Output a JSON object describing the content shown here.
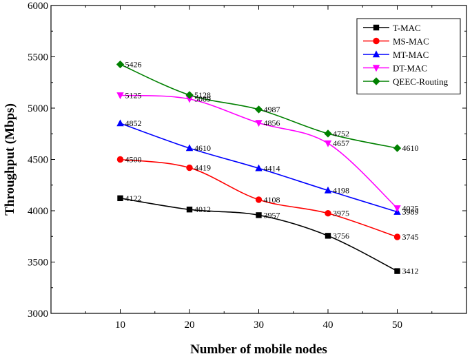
{
  "chart_data": {
    "type": "line",
    "title": "",
    "xlabel": "Number of mobile nodes",
    "ylabel": "Throughput (Mbps)",
    "x": [
      10,
      20,
      30,
      40,
      50
    ],
    "xlim": [
      0,
      60
    ],
    "ylim": [
      3000,
      6000
    ],
    "xticks": [
      10,
      20,
      30,
      40,
      50
    ],
    "yticks": [
      3000,
      3500,
      4000,
      4500,
      5000,
      5500,
      6000
    ],
    "grid": false,
    "legend_position": "top-right",
    "series": [
      {
        "name": "T-MAC",
        "color": "#000000",
        "marker": "square",
        "values": [
          4122,
          4012,
          3957,
          3756,
          3412
        ]
      },
      {
        "name": "MS-MAC",
        "color": "#ff0000",
        "marker": "circle",
        "values": [
          4500,
          4419,
          4108,
          3975,
          3745
        ]
      },
      {
        "name": "MT-MAC",
        "color": "#0000ff",
        "marker": "triangle-up",
        "values": [
          4852,
          4610,
          4414,
          4198,
          3989
        ]
      },
      {
        "name": "DT-MAC",
        "color": "#ff00ff",
        "marker": "triangle-down",
        "values": [
          5125,
          5089,
          4856,
          4657,
          4025
        ]
      },
      {
        "name": "QEEC-Routing",
        "color": "#008000",
        "marker": "diamond",
        "values": [
          5426,
          5128,
          4987,
          4752,
          4610
        ]
      }
    ]
  }
}
